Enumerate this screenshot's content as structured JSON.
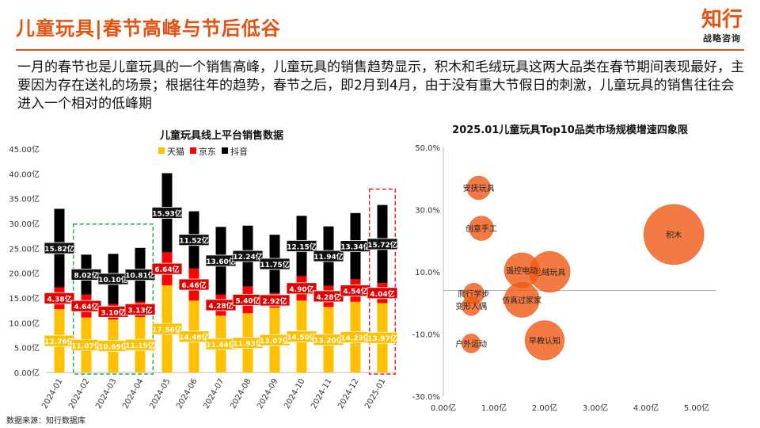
{
  "page": {
    "title": "儿童玩具|春节高峰与节后低谷",
    "logo_main": "知行",
    "logo_sub": "战略咨询",
    "description": "一月的春节也是儿童玩具的一个销售高峰，儿童玩具的销售趋势显示，积木和毛绒玩具这两大品类在春节期间表现最好，主要因为存在送礼的场景；根据往年的趋势，春节之后，即2月到4月，由于没有重大节假日的刺激，儿童玩具的销售往往会进入一个相对的低峰期",
    "source": "数据来源：知行数据库"
  },
  "chart_data": [
    {
      "type": "bar",
      "stacked": true,
      "title": "儿童玩具线上平台销售数据",
      "unit": "亿",
      "categories": [
        "2024-01",
        "2024-02",
        "2024-03",
        "2024-04",
        "2024-05",
        "2024-06",
        "2024-07",
        "2024-08",
        "2024-09",
        "2024-10",
        "2024-11",
        "2024-12",
        "2025-01"
      ],
      "series": [
        {
          "name": "天猫",
          "color": "#ffc000",
          "values": [
            12.76,
            11.07,
            10.69,
            11.15,
            17.56,
            14.48,
            11.44,
            11.93,
            13.07,
            14.5,
            13.2,
            14.23,
            13.97
          ]
        },
        {
          "name": "京东",
          "color": "#ff0000",
          "values": [
            4.38,
            4.64,
            3.1,
            3.13,
            6.64,
            6.46,
            4.28,
            5.4,
            2.92,
            4.9,
            4.28,
            4.54,
            4.04
          ]
        },
        {
          "name": "抖音",
          "color": "#000000",
          "values": [
            15.82,
            8.02,
            10.1,
            10.81,
            15.93,
            11.52,
            13.6,
            12.24,
            11.75,
            12.15,
            11.94,
            13.34,
            15.72
          ]
        }
      ],
      "ylim": [
        0,
        45
      ],
      "yticks": [
        "0.00亿",
        "5.00亿",
        "10.00亿",
        "15.00亿",
        "20.00亿",
        "25.00亿",
        "30.00亿",
        "35.00亿",
        "40.00亿",
        "45.00亿"
      ],
      "highlights": [
        {
          "from": "2024-02",
          "to": "2024-04",
          "color": "#2ea84f"
        },
        {
          "from": "2025-01",
          "to": "2025-01",
          "color": "#e82020"
        }
      ],
      "legend": "top"
    },
    {
      "type": "scatter",
      "subtype": "bubble",
      "title": "2025.01儿童玩具Top10品类市场规模增速四象限",
      "xlim": [
        0,
        5
      ],
      "ylim": [
        -30,
        50
      ],
      "xticks": [
        "0.00亿",
        "1.00亿",
        "2.00亿",
        "3.00亿",
        "4.00亿",
        "5.00亿"
      ],
      "yticks": [
        "50.0%",
        "30.0%",
        "10.0%",
        "-10.0%",
        "-30.0%"
      ],
      "points": [
        {
          "label": "积木",
          "x": 4.55,
          "y": 22,
          "size": 4.55
        },
        {
          "label": "毛绒玩具",
          "x": 2.1,
          "y": 10,
          "size": 2.1
        },
        {
          "label": "遥控电动",
          "x": 1.55,
          "y": 10.5,
          "size": 1.55
        },
        {
          "label": "仿真过家家",
          "x": 1.55,
          "y": 1,
          "size": 1.55
        },
        {
          "label": "早教认知",
          "x": 2.0,
          "y": -12,
          "size": 1.95
        },
        {
          "label": "安抚玩具",
          "x": 0.7,
          "y": 37,
          "size": 0.7
        },
        {
          "label": "创意手工",
          "x": 0.75,
          "y": 24,
          "size": 0.75
        },
        {
          "label": "爬行学步",
          "x": 0.6,
          "y": 3,
          "size": 0.55
        },
        {
          "label": "变形人偶",
          "x": 0.55,
          "y": -1,
          "size": 0.45
        },
        {
          "label": "户外运动",
          "x": 0.55,
          "y": -13,
          "size": 0.45
        }
      ],
      "hline": 4
    }
  ]
}
